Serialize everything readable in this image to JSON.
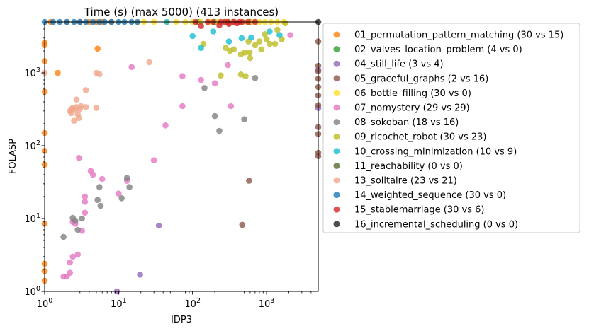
{
  "chart_data": {
    "type": "scatter",
    "title": "Time (s) (max 5000) (413 instances)",
    "xlabel": "IDP3",
    "ylabel": "FOLASP",
    "xscale": "log",
    "yscale": "log",
    "xlim": [
      1,
      5000
    ],
    "ylim": [
      1,
      5000
    ],
    "x_ticks": [
      {
        "value": 1,
        "base": "10",
        "exp": "0"
      },
      {
        "value": 10,
        "base": "10",
        "exp": "1"
      },
      {
        "value": 100,
        "base": "10",
        "exp": "2"
      },
      {
        "value": 1000,
        "base": "10",
        "exp": "3"
      }
    ],
    "y_ticks": [
      {
        "value": 1,
        "base": "10",
        "exp": "0"
      },
      {
        "value": 10,
        "base": "10",
        "exp": "1"
      },
      {
        "value": 100,
        "base": "10",
        "exp": "2"
      },
      {
        "value": 1000,
        "base": "10",
        "exp": "3"
      }
    ],
    "legend_position": "outside-right",
    "series": [
      {
        "name": "01_permutation_pattern_matching (30 vs 15)",
        "color": "#ff7f0e",
        "points": [
          [
            1,
            2600
          ],
          [
            1,
            2400
          ],
          [
            1,
            1450
          ],
          [
            1,
            550
          ],
          [
            1,
            150
          ],
          [
            1,
            85
          ],
          [
            1,
            55
          ],
          [
            1,
            8.5
          ],
          [
            1,
            2.4
          ],
          [
            1,
            1.9
          ],
          [
            1,
            1.4
          ],
          [
            1.2,
            5000
          ],
          [
            1.5,
            1000
          ],
          [
            5.2,
            2150
          ],
          [
            2,
            5000
          ],
          [
            3,
            5000
          ],
          [
            4,
            5000
          ],
          [
            5,
            5000
          ],
          [
            6,
            5000
          ],
          [
            8,
            5000
          ]
        ]
      },
      {
        "name": "02_valves_location_problem (4 vs 0)",
        "color": "#2ca02c",
        "points": [
          [
            120,
            5000
          ],
          [
            200,
            5000
          ],
          [
            280,
            5000
          ],
          [
            350,
            5000
          ]
        ]
      },
      {
        "name": "04_still_life (3 vs 4)",
        "color": "#9467bd",
        "points": [
          [
            9.5,
            1
          ],
          [
            19.5,
            1.7
          ],
          [
            35,
            8
          ],
          [
            5000,
            1100
          ],
          [
            5000,
            330
          ]
        ]
      },
      {
        "name": "05_graceful_graphs (2 vs 16)",
        "color": "#8c564b",
        "points": [
          [
            580,
            33
          ],
          [
            470,
            8.2
          ],
          [
            5000,
            2700
          ],
          [
            5000,
            1250
          ],
          [
            5000,
            1050
          ],
          [
            5000,
            830
          ],
          [
            5000,
            640
          ],
          [
            5000,
            490
          ],
          [
            5000,
            360
          ],
          [
            5000,
            180
          ],
          [
            5000,
            145
          ],
          [
            5000,
            80
          ],
          [
            5000,
            72
          ],
          [
            300,
            5000
          ],
          [
            600,
            5000
          ]
        ]
      },
      {
        "name": "06_bottle_filling (30 vs 0)",
        "color": "#ffdd22",
        "points": [
          [
            18,
            5000
          ],
          [
            22,
            5000
          ],
          [
            30,
            5000
          ],
          [
            45,
            5000
          ],
          [
            60,
            5000
          ],
          [
            80,
            5000
          ],
          [
            100,
            5000
          ],
          [
            130,
            5000
          ],
          [
            170,
            5000
          ],
          [
            220,
            5000
          ],
          [
            280,
            5000
          ],
          [
            350,
            5000
          ],
          [
            450,
            5000
          ],
          [
            550,
            5000
          ],
          [
            650,
            5000
          ],
          [
            800,
            5000
          ],
          [
            950,
            5000
          ],
          [
            1150,
            5000
          ],
          [
            1400,
            5000
          ],
          [
            1700,
            5000
          ]
        ]
      },
      {
        "name": "07_nomystery (29 vs 29)",
        "color": "#e377c2",
        "points": [
          [
            1.8,
            1.6
          ],
          [
            2,
            1.6
          ],
          [
            2.2,
            1.8
          ],
          [
            2.2,
            2.5
          ],
          [
            2.4,
            3
          ],
          [
            2.8,
            3.2
          ],
          [
            3.2,
            6.8
          ],
          [
            2.4,
            9
          ],
          [
            2.6,
            8.5
          ],
          [
            3.5,
            20
          ],
          [
            3.5,
            17
          ],
          [
            3.5,
            12
          ],
          [
            4.2,
            45
          ],
          [
            4.5,
            40
          ],
          [
            6,
            35
          ],
          [
            2.9,
            68
          ],
          [
            10,
            22
          ],
          [
            13,
            33
          ],
          [
            15,
            1200
          ],
          [
            30,
            63
          ],
          [
            43,
            190
          ],
          [
            73,
            900
          ],
          [
            73,
            350
          ],
          [
            130,
            800
          ],
          [
            200,
            720
          ],
          [
            300,
            1280
          ],
          [
            330,
            350
          ],
          [
            370,
            5000
          ],
          [
            2100,
            3300
          ]
        ]
      },
      {
        "name": "08_sokoban (18 vs 16)",
        "color": "#7f7f7f",
        "points": [
          [
            1.8,
            5.6
          ],
          [
            2.4,
            10.2
          ],
          [
            2.6,
            9.3
          ],
          [
            2.8,
            7
          ],
          [
            3.2,
            10
          ],
          [
            5.2,
            18
          ],
          [
            5.5,
            27
          ],
          [
            5.7,
            15
          ],
          [
            11,
            19
          ],
          [
            13,
            36
          ],
          [
            14,
            27
          ],
          [
            145,
            620
          ],
          [
            200,
            255
          ],
          [
            230,
            160
          ],
          [
            500,
            230
          ],
          [
            700,
            850
          ]
        ]
      },
      {
        "name": "09_ricochet_robot (30 vs 23)",
        "color": "#bcbd22",
        "points": [
          [
            140,
            2500
          ],
          [
            240,
            920
          ],
          [
            280,
            2200
          ],
          [
            320,
            2000
          ],
          [
            360,
            2100
          ],
          [
            450,
            1800
          ],
          [
            450,
            950
          ],
          [
            510,
            1900
          ],
          [
            520,
            900
          ],
          [
            570,
            2700
          ],
          [
            590,
            1900
          ],
          [
            600,
            1600
          ],
          [
            700,
            2400
          ],
          [
            800,
            2700
          ],
          [
            850,
            2100
          ],
          [
            950,
            3400
          ],
          [
            1000,
            2900
          ],
          [
            1100,
            2500
          ],
          [
            1300,
            2500
          ],
          [
            1400,
            3900
          ],
          [
            1600,
            2900
          ],
          [
            1800,
            4800
          ]
        ]
      },
      {
        "name": "10_crossing_minimization (10 vs 9)",
        "color": "#17becf",
        "points": [
          [
            45,
            5000
          ],
          [
            100,
            3200
          ],
          [
            130,
            2200
          ],
          [
            190,
            3700
          ],
          [
            310,
            2700
          ],
          [
            460,
            3000
          ],
          [
            620,
            3050
          ],
          [
            1100,
            3700
          ],
          [
            1500,
            3300
          ]
        ]
      },
      {
        "name": "11_reachability (0 vs 0)",
        "color": "#556b2f",
        "points": []
      },
      {
        "name": "13_solitaire (23 vs 21)",
        "color": "#f0a68a",
        "points": [
          [
            2.2,
            300
          ],
          [
            2.3,
            280
          ],
          [
            2.3,
            320
          ],
          [
            2.4,
            330
          ],
          [
            2.5,
            220
          ],
          [
            2.6,
            310
          ],
          [
            2.7,
            340
          ],
          [
            2.8,
            270
          ],
          [
            2.9,
            240
          ],
          [
            3,
            320
          ],
          [
            3.1,
            350
          ],
          [
            2.7,
            430
          ],
          [
            3.6,
            580
          ],
          [
            3.6,
            340
          ],
          [
            5,
            1000
          ],
          [
            5.5,
            960
          ],
          [
            5,
            330
          ],
          [
            26,
            1400
          ],
          [
            1,
            1000
          ],
          [
            2,
            5000
          ],
          [
            3,
            5000
          ]
        ]
      },
      {
        "name": "14_weighted_sequence (30 vs 0)",
        "color": "#1f77b4",
        "points": [
          [
            1,
            5000
          ],
          [
            1.3,
            5000
          ],
          [
            1.6,
            5000
          ],
          [
            2,
            5000
          ],
          [
            2.5,
            5000
          ],
          [
            3,
            5000
          ],
          [
            3.6,
            5000
          ],
          [
            4.5,
            5000
          ],
          [
            5.5,
            5000
          ],
          [
            6.5,
            5000
          ],
          [
            8,
            5000
          ],
          [
            10,
            5000
          ],
          [
            12,
            5000
          ],
          [
            15,
            5000
          ],
          [
            18,
            5000
          ]
        ]
      },
      {
        "name": "15_stablemarriage (30 vs 6)",
        "color": "#d62728",
        "points": [
          [
            110,
            5000
          ],
          [
            130,
            4400
          ],
          [
            160,
            5000
          ],
          [
            190,
            5000
          ],
          [
            240,
            5000
          ],
          [
            300,
            5000
          ],
          [
            310,
            4700
          ],
          [
            360,
            5000
          ],
          [
            400,
            4800
          ],
          [
            430,
            5000
          ],
          [
            470,
            5000
          ],
          [
            560,
            5000
          ],
          [
            700,
            5000
          ],
          [
            230,
            4500
          ],
          [
            270,
            5000
          ]
        ]
      },
      {
        "name": "16_incremental_scheduling (0 vs 0)",
        "color": "#222222",
        "points": [
          [
            5000,
            5000
          ]
        ]
      }
    ]
  }
}
